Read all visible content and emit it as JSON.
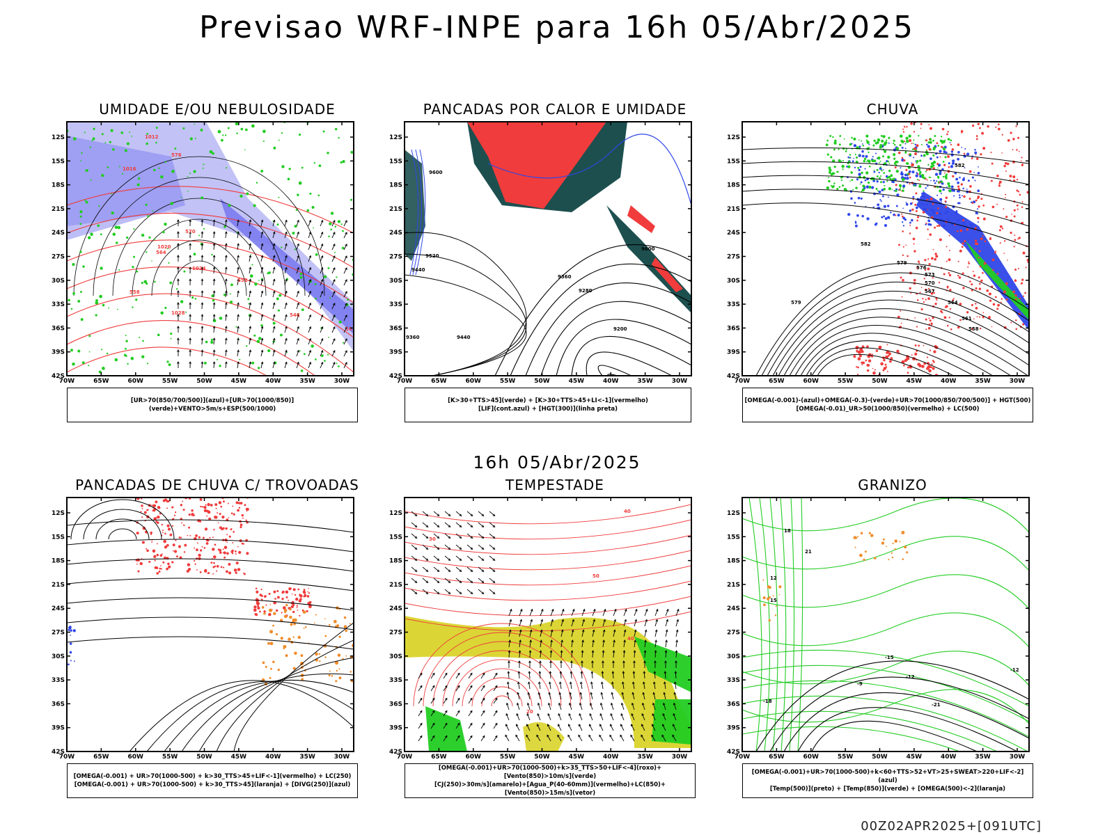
{
  "header": {
    "title": "Previsao WRF-INPE  para 16h 05/Abr/2025",
    "mid_title": "16h 05/Abr/2025",
    "stamp": "00Z02APR2025+[091UTC]"
  },
  "axes": {
    "lat_ticks": [
      "12S",
      "15S",
      "18S",
      "21S",
      "24S",
      "27S",
      "30S",
      "33S",
      "36S",
      "39S",
      "42S"
    ],
    "lon_ticks": [
      "70W",
      "65W",
      "60W",
      "55W",
      "50W",
      "45W",
      "40W",
      "35W",
      "30W"
    ]
  },
  "panels": [
    {
      "id": "umidade",
      "title": "UMIDADE E/OU NEBULOSIDADE",
      "legend": [
        "[UR>70(850/700/500)](azul)+[UR>70(1000/850)](verde)+VENTO>5m/s+ESP(500/1000)"
      ],
      "contour_labels": [
        "1012",
        "1016",
        "1020",
        "1024",
        "1028",
        "1016",
        "576",
        "570",
        "564",
        "558",
        "552",
        "546"
      ]
    },
    {
      "id": "pancadas-calor",
      "title": "PANCADAS POR CALOR E UMIDADE",
      "legend": [
        "[K>30+TTS>45](verde) + [K>30+TTS>45+LI<-1](vermelho)",
        "[LIF](cont.azul) + [HGT(300)](linha preta)"
      ],
      "contour_labels": [
        "9600",
        "9520",
        "9440",
        "9360",
        "9280",
        "9200",
        "9440",
        "9360",
        "9600"
      ]
    },
    {
      "id": "chuva",
      "title": "CHUVA",
      "legend": [
        "[OMEGA(-0.001)-(azul)+OMEGA(-0.3)-(verde)+UR>70(1000/850/700/500)] + HGT(500)",
        "[OMEGA(-0.01)_UR>50(1000/850)(vermelho) + LC(500)"
      ],
      "contour_labels": [
        "582",
        "579",
        "576",
        "573",
        "570",
        "567",
        "564",
        "561",
        "558",
        "579",
        "582"
      ]
    },
    {
      "id": "pancadas-trovoadas",
      "title": "PANCADAS DE CHUVA C/ TROVOADAS",
      "legend": [
        "[OMEGA(-0.001) + UR>70(1000-500) + k>30_TTS>45+LIF<-1](vermelho) + LC(250)",
        "[OMEGA(-0.001) + UR>70(1000-500) + k>30_TTS>45](laranja) + [DIVG(250)](azul)"
      ],
      "contour_labels": []
    },
    {
      "id": "tempestade",
      "title": "TEMPESTADE",
      "legend": [
        "[OMEGA(-0.001)+UR>70(1000-500)+k>35_TTS>50+LIF<-4](roxo)+[Vento(850)>10m/s](verde)",
        "[CJ(250)>30m/s](amarelo)+[Agua_P(40-60mm)](vermelho)+LC(850)+[Vento(850)>15m/s](vetor)"
      ],
      "contour_labels": [
        "40",
        "30",
        "50",
        "40",
        "20"
      ]
    },
    {
      "id": "granizo",
      "title": "GRANIZO",
      "legend": [
        "[OMEGA(-0.001)+UR>70(1000-500)+k<60+TTS>52+VT>25+SWEAT>220+LIF<-2](azul)",
        "[Temp(500)](preto) + [Temp(850)](verde) + [OMEGA(500)<-2](laranja)"
      ],
      "contour_labels": [
        "-15",
        "-12",
        "-18",
        "-21",
        "-12",
        "-9",
        "12",
        "15",
        "18",
        "21"
      ]
    }
  ],
  "colors": {
    "blue_humidity": "#7b7bf0",
    "light_blue": "#b7b7f5",
    "green": "#22cc22",
    "red": "#f03c3c",
    "dark_teal": "#1d4f4f",
    "orange": "#f08c2a",
    "yellow": "#d9d42a",
    "purple_blue": "#2f47e8"
  }
}
